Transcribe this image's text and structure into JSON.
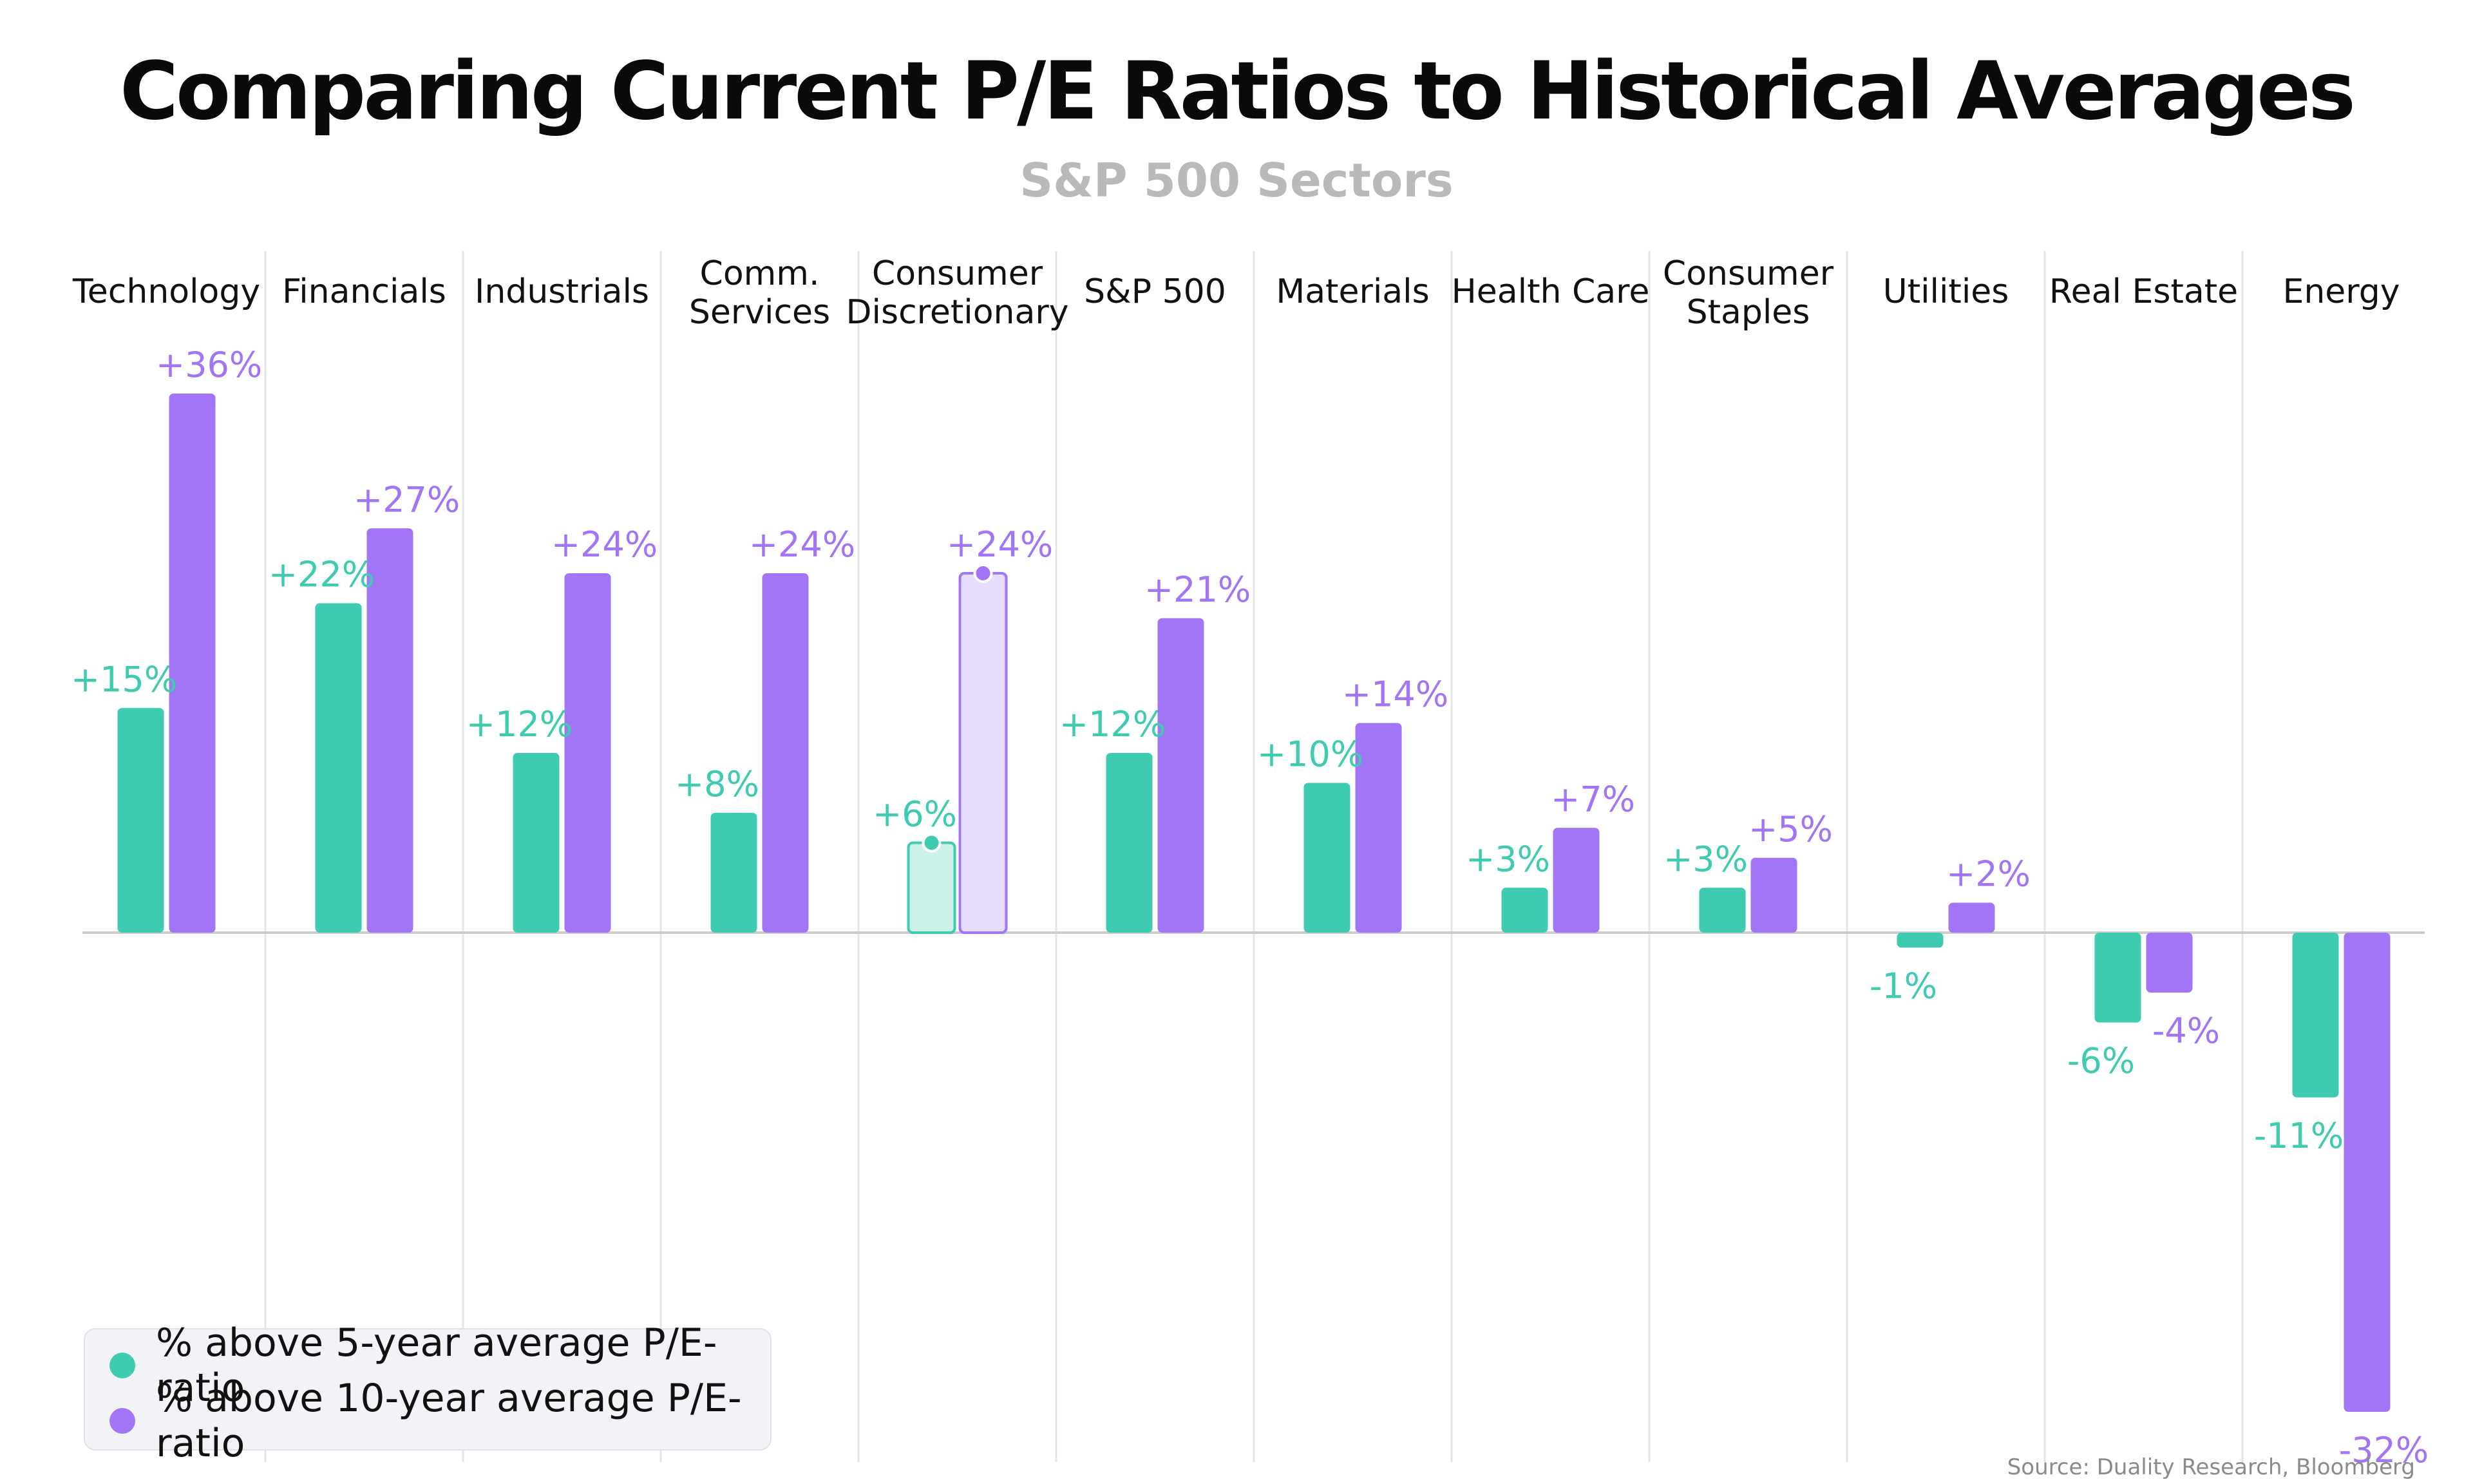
{
  "title": "Comparing Current P/E Ratios to Historical Averages",
  "subtitle": "S&P 500 Sectors",
  "source": "Source: Duality Research, Bloomberg",
  "colors": {
    "five_year": "#3ecbb0",
    "ten_year": "#a175f5",
    "five_year_highlight": "#cdf2ea",
    "ten_year_highlight": "#e6dcfd",
    "gridline": "#e4e4e4",
    "baseline": "#cccccc"
  },
  "chart_data": {
    "type": "bar",
    "title": "Comparing Current P/E Ratios to Historical Averages",
    "subtitle": "S&P 500 Sectors",
    "categories": [
      [
        "Technology"
      ],
      [
        "Financials"
      ],
      [
        "Industrials"
      ],
      [
        "Comm.",
        "Services"
      ],
      [
        "Consumer",
        "Discretionary"
      ],
      [
        "S&P 500"
      ],
      [
        "Materials"
      ],
      [
        "Health Care"
      ],
      [
        "Consumer",
        "Staples"
      ],
      [
        "Utilities"
      ],
      [
        "Real Estate"
      ],
      [
        "Energy"
      ]
    ],
    "series": [
      {
        "name": "% above 5-year average P/E-ratio",
        "values": [
          15,
          22,
          12,
          8,
          6,
          12,
          10,
          3,
          3,
          -1,
          -6,
          -11
        ],
        "labels": [
          "+15%",
          "+22%",
          "+12%",
          "+8%",
          "+6%",
          "+12%",
          "+10%",
          "+3%",
          "+3%",
          "-1%",
          "-6%",
          "-11%"
        ]
      },
      {
        "name": "% above 10-year average P/E-ratio",
        "values": [
          36,
          27,
          24,
          24,
          24,
          21,
          14,
          7,
          5,
          2,
          -4,
          -32
        ],
        "labels": [
          "+36%",
          "+27%",
          "+24%",
          "+24%",
          "+24%",
          "+21%",
          "+14%",
          "+7%",
          "+5%",
          "+2%",
          "-4%",
          "-32%"
        ]
      }
    ],
    "highlighted_category": "Consumer Discretionary",
    "ylim": [
      -32,
      36
    ],
    "grid": "vertical separators",
    "legend_position": "bottom-left"
  },
  "legend": [
    {
      "label": "% above 5-year average P/E-ratio",
      "color": "#3ecbb0"
    },
    {
      "label": "% above 10-year average P/E-ratio",
      "color": "#a175f5"
    }
  ]
}
